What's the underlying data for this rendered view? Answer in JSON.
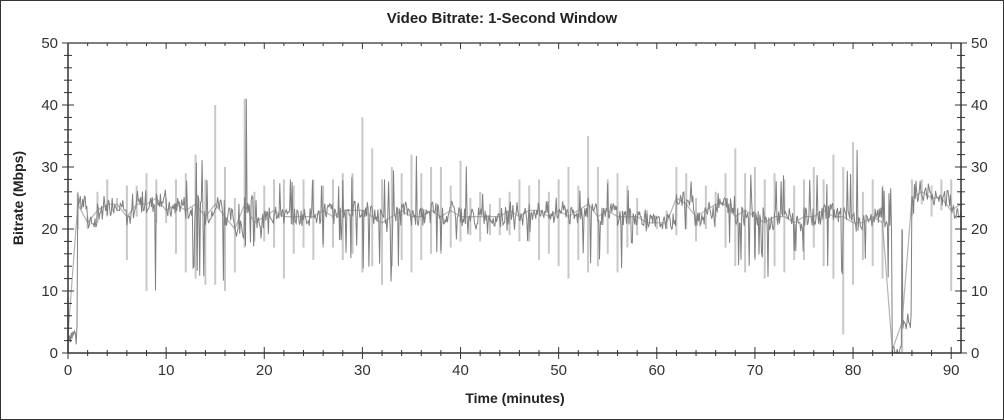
{
  "chart_data": {
    "type": "line",
    "title": "Video Bitrate: 1-Second Window",
    "xlabel": "Time (minutes)",
    "ylabel": "Bitrate (Mbps)",
    "xlim": [
      0,
      91
    ],
    "ylim": [
      0,
      50
    ],
    "x_ticks": [
      "0",
      "10",
      "20",
      "30",
      "40",
      "50",
      "60",
      "70",
      "80",
      "90"
    ],
    "y_ticks": [
      "0",
      "10",
      "20",
      "30",
      "40",
      "50"
    ],
    "y_axis_right": true,
    "grid": false,
    "colors": {
      "trace": "#808080",
      "range": "#c8c8c8",
      "axis": "#333333"
    },
    "x": [
      0,
      1,
      2,
      3,
      4,
      5,
      6,
      7,
      8,
      9,
      10,
      11,
      12,
      13,
      14,
      15,
      16,
      17,
      18,
      19,
      20,
      21,
      22,
      23,
      24,
      25,
      26,
      27,
      28,
      29,
      30,
      31,
      32,
      33,
      34,
      35,
      36,
      37,
      38,
      39,
      40,
      41,
      42,
      43,
      44,
      45,
      46,
      47,
      48,
      49,
      50,
      51,
      52,
      53,
      54,
      55,
      56,
      57,
      58,
      59,
      60,
      61,
      62,
      63,
      64,
      65,
      66,
      67,
      68,
      69,
      70,
      71,
      72,
      73,
      74,
      75,
      76,
      77,
      78,
      79,
      80,
      81,
      82,
      83,
      84,
      85,
      86,
      87,
      88,
      89,
      90,
      91
    ],
    "series": [
      {
        "role": "mean",
        "values": [
          3,
          24,
          21,
          23,
          24,
          24,
          22,
          24,
          24,
          25,
          23,
          24,
          23,
          24,
          22,
          24,
          22,
          20,
          24,
          21,
          22,
          23,
          22,
          22,
          22,
          22,
          23,
          22,
          23,
          23,
          23,
          22,
          21,
          22,
          23,
          22,
          22,
          23,
          22,
          23,
          22,
          22,
          22,
          22,
          22,
          23,
          22,
          23,
          23,
          22,
          23,
          22,
          23,
          24,
          22,
          23,
          22,
          22,
          22,
          21,
          21,
          21,
          25,
          24,
          22,
          23,
          24,
          24,
          22,
          23,
          22,
          21,
          22,
          22,
          21,
          22,
          22,
          23,
          22,
          22,
          21,
          21,
          22,
          21,
          0.5,
          5,
          25,
          26,
          25,
          25,
          23,
          24
        ]
      },
      {
        "role": "min",
        "values": [
          0,
          20,
          20,
          21,
          22,
          23,
          15,
          22,
          10,
          21,
          21,
          16,
          13,
          12,
          11,
          11,
          10,
          13,
          17,
          18,
          18,
          17,
          12,
          16,
          17,
          15,
          17,
          17,
          15,
          16,
          13,
          14,
          11,
          14,
          15,
          13,
          15,
          16,
          16,
          17,
          18,
          19,
          18,
          19,
          19,
          19,
          18,
          18,
          15,
          16,
          14,
          12,
          15,
          13,
          14,
          16,
          13,
          17,
          19,
          20,
          20,
          20,
          19,
          20,
          18,
          20,
          22,
          17,
          14,
          13,
          15,
          12,
          14,
          13,
          15,
          15,
          17,
          14,
          12,
          3,
          11,
          15,
          14,
          12,
          0,
          0,
          22,
          24,
          22,
          23,
          10,
          20
        ]
      },
      {
        "role": "max",
        "values": [
          9,
          26,
          22,
          26,
          28,
          25,
          27,
          27,
          29,
          28,
          25,
          28,
          29,
          32,
          28,
          40,
          30,
          25,
          41,
          26,
          27,
          28,
          28,
          27,
          28,
          28,
          27,
          28,
          29,
          29,
          38,
          33,
          28,
          30,
          29,
          32,
          29,
          30,
          30,
          27,
          31,
          25,
          26,
          24,
          25,
          26,
          28,
          27,
          28,
          26,
          28,
          30,
          27,
          35,
          30,
          28,
          29,
          27,
          25,
          23,
          22,
          23,
          30,
          29,
          25,
          27,
          26,
          29,
          33,
          29,
          30,
          28,
          29,
          28,
          27,
          28,
          30,
          28,
          32,
          30,
          34,
          26,
          28,
          27,
          1,
          20,
          28,
          28,
          27,
          28,
          28,
          26
        ]
      }
    ]
  }
}
